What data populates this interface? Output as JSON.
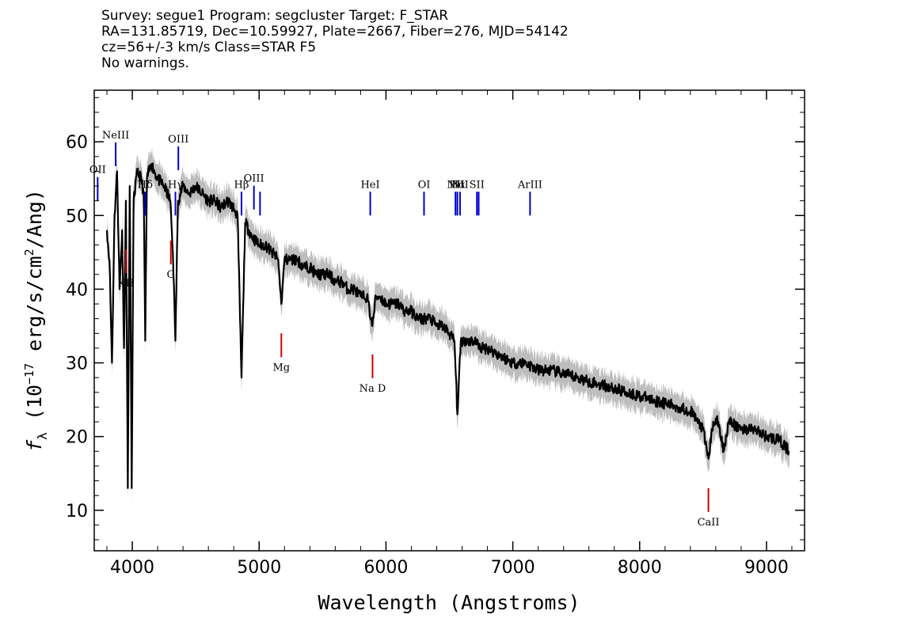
{
  "header": {
    "survey_line": "Survey: segue1 Program: segcluster Target: F_STAR",
    "coords_line": "RA=131.85719, Dec=10.59927, Plate=2667, Fiber=276, MJD=54142",
    "redshift_line": "cz=56+/-3 km/s Class=STAR F5",
    "warnings_line": "No warnings."
  },
  "chart_data": {
    "type": "line",
    "xlabel": "Wavelength (Angstroms)",
    "ylabel": "f_λ (10^-17 erg/s/cm^2/Ang)",
    "ylabel_parts": {
      "f": "f",
      "sub": "λ",
      "pre": " (10",
      "exp": "−17",
      "mid": " erg/s/cm",
      "exp2": "2",
      "post": "/Ang)"
    },
    "xlim": [
      3700,
      9300
    ],
    "ylim": [
      4.5,
      67
    ],
    "xticks": [
      4000,
      5000,
      6000,
      7000,
      8000,
      9000
    ],
    "yticks": [
      10,
      20,
      30,
      40,
      50,
      60
    ],
    "grid": false,
    "colors": {
      "flux": "#000000",
      "error_band": "#bdbdbd",
      "emission_marker": "#0000cc",
      "absorption_marker": "#cc0000"
    },
    "series": [
      {
        "points": [
          [
            3800,
            48
          ],
          [
            3820,
            44
          ],
          [
            3840,
            30
          ],
          [
            3860,
            50
          ],
          [
            3880,
            56
          ],
          [
            3900,
            40
          ],
          [
            3920,
            48
          ],
          [
            3935,
            32
          ],
          [
            3950,
            52
          ],
          [
            3965,
            13
          ],
          [
            3980,
            54
          ],
          [
            3995,
            13
          ],
          [
            4010,
            52
          ],
          [
            4040,
            56
          ],
          [
            4070,
            55
          ],
          [
            4090,
            53
          ],
          [
            4102,
            33
          ],
          [
            4115,
            55
          ],
          [
            4150,
            57
          ],
          [
            4200,
            55
          ],
          [
            4250,
            54
          ],
          [
            4300,
            52
          ],
          [
            4320,
            45
          ],
          [
            4340,
            33
          ],
          [
            4360,
            52
          ],
          [
            4400,
            54
          ],
          [
            4450,
            53
          ],
          [
            4500,
            54
          ],
          [
            4550,
            53
          ],
          [
            4600,
            52
          ],
          [
            4650,
            52
          ],
          [
            4700,
            51
          ],
          [
            4750,
            52
          ],
          [
            4800,
            51
          ],
          [
            4830,
            50
          ],
          [
            4861,
            28
          ],
          [
            4890,
            49
          ],
          [
            4920,
            48
          ],
          [
            4950,
            47
          ],
          [
            5000,
            46
          ],
          [
            5050,
            46
          ],
          [
            5100,
            45
          ],
          [
            5150,
            44
          ],
          [
            5175,
            38
          ],
          [
            5200,
            44
          ],
          [
            5250,
            44
          ],
          [
            5300,
            44
          ],
          [
            5350,
            43
          ],
          [
            5400,
            43
          ],
          [
            5450,
            42
          ],
          [
            5500,
            42
          ],
          [
            5550,
            42
          ],
          [
            5600,
            41
          ],
          [
            5650,
            41
          ],
          [
            5700,
            40
          ],
          [
            5750,
            40
          ],
          [
            5800,
            39
          ],
          [
            5850,
            39
          ],
          [
            5893,
            35
          ],
          [
            5920,
            39
          ],
          [
            5950,
            39
          ],
          [
            6000,
            38
          ],
          [
            6050,
            38
          ],
          [
            6100,
            38
          ],
          [
            6150,
            37
          ],
          [
            6200,
            37
          ],
          [
            6250,
            36
          ],
          [
            6300,
            36
          ],
          [
            6350,
            36
          ],
          [
            6400,
            35
          ],
          [
            6450,
            35
          ],
          [
            6500,
            34
          ],
          [
            6540,
            33
          ],
          [
            6563,
            23
          ],
          [
            6590,
            33
          ],
          [
            6620,
            33
          ],
          [
            6650,
            33
          ],
          [
            6700,
            33
          ],
          [
            6750,
            32
          ],
          [
            6800,
            32
          ],
          [
            6900,
            31
          ],
          [
            7000,
            30
          ],
          [
            7100,
            30
          ],
          [
            7200,
            29
          ],
          [
            7300,
            29
          ],
          [
            7400,
            28.5
          ],
          [
            7500,
            28
          ],
          [
            7600,
            27.5
          ],
          [
            7700,
            27
          ],
          [
            7800,
            26.5
          ],
          [
            7900,
            26
          ],
          [
            8000,
            25.5
          ],
          [
            8100,
            25
          ],
          [
            8200,
            24.5
          ],
          [
            8300,
            24
          ],
          [
            8400,
            23.5
          ],
          [
            8498,
            21
          ],
          [
            8542,
            17
          ],
          [
            8580,
            22
          ],
          [
            8620,
            22
          ],
          [
            8662,
            18
          ],
          [
            8700,
            22
          ],
          [
            8800,
            21
          ],
          [
            8900,
            21
          ],
          [
            9000,
            20
          ],
          [
            9100,
            19.5
          ],
          [
            9180,
            18
          ]
        ]
      }
    ],
    "emission_lines": [
      {
        "label": "OII",
        "wavelength": 3727
      },
      {
        "label": "NeIII",
        "wavelength": 3869
      },
      {
        "label": "Hδ",
        "wavelength": 4102
      },
      {
        "label": "Hγ",
        "wavelength": 4340
      },
      {
        "label": "OIII",
        "wavelength": 4363
      },
      {
        "label": "Hβ",
        "wavelength": 4861
      },
      {
        "label": "OIII",
        "wavelength": 4959
      },
      {
        "label": "",
        "wavelength": 5007
      },
      {
        "label": "HeI",
        "wavelength": 5876
      },
      {
        "label": "OI",
        "wavelength": 6300
      },
      {
        "label": "NII",
        "wavelength": 6548
      },
      {
        "label": "Hα",
        "wavelength": 6563
      },
      {
        "label": "NII",
        "wavelength": 6584
      },
      {
        "label": "SII",
        "wavelength": 6717
      },
      {
        "label": "",
        "wavelength": 6731
      },
      {
        "label": "ArIII",
        "wavelength": 7136
      }
    ],
    "absorption_lines": [
      {
        "label": "KH",
        "wavelength": 3951
      },
      {
        "label": "G",
        "wavelength": 4304
      },
      {
        "label": "Mg",
        "wavelength": 5175
      },
      {
        "label": "Na D",
        "wavelength": 5894
      },
      {
        "label": "CaII",
        "wavelength": 8542
      }
    ]
  }
}
